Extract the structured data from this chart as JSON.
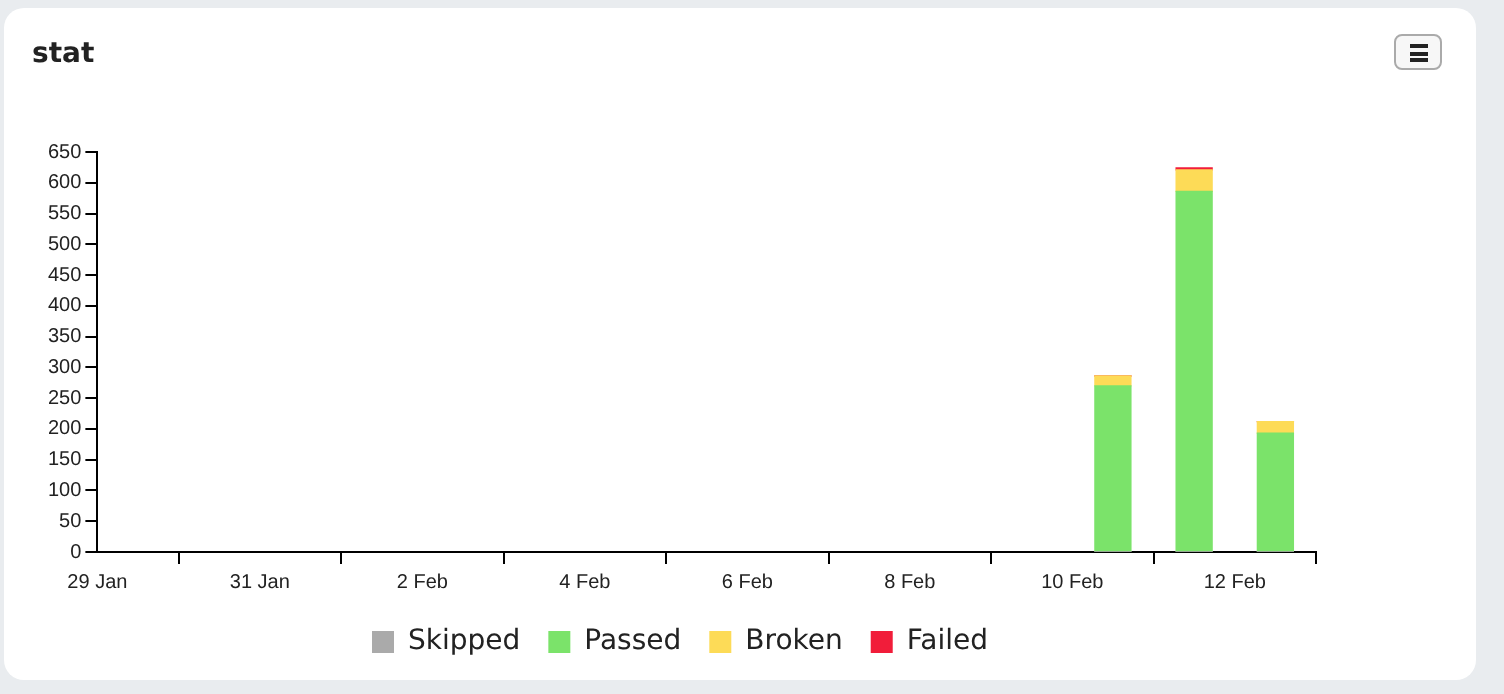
{
  "chart_data": {
    "type": "bar",
    "title": "stat",
    "stacked": true,
    "x": [
      "--02-10T12:00",
      "--02-11T12:00",
      "--02-12T12:00"
    ],
    "series": [
      {
        "name": "Skipped",
        "color": "#aaaaaa",
        "values": [
          0,
          0,
          0
        ]
      },
      {
        "name": "Passed",
        "color": "#7be36a",
        "values": [
          270,
          586,
          193
        ]
      },
      {
        "name": "Broken",
        "color": "#fddb57",
        "values": [
          16,
          35,
          19
        ]
      },
      {
        "name": "Failed",
        "color": "#f11d3a",
        "values": [
          0,
          3,
          0
        ]
      }
    ],
    "xlim": [
      "--01-29",
      "--02-13"
    ],
    "xticks": [
      {
        "value": "--01-29",
        "label": "29 Jan"
      },
      {
        "value": "--01-31",
        "label": "31 Jan"
      },
      {
        "value": "--02-02",
        "label": "2 Feb"
      },
      {
        "value": "--02-04",
        "label": "4 Feb"
      },
      {
        "value": "--02-06",
        "label": "6 Feb"
      },
      {
        "value": "--02-08",
        "label": "8 Feb"
      },
      {
        "value": "--02-10",
        "label": "10 Feb"
      },
      {
        "value": "--02-12",
        "label": "12 Feb"
      }
    ],
    "ylim": [
      0,
      650
    ],
    "yticks": [
      0,
      50,
      100,
      150,
      200,
      250,
      300,
      350,
      400,
      450,
      500,
      550,
      600,
      650
    ],
    "grid": false,
    "legend": "bottom"
  }
}
